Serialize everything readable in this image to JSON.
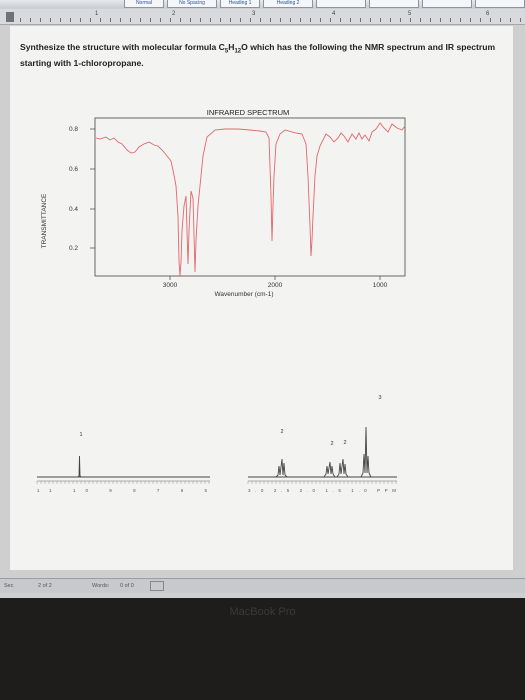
{
  "toolbar": {
    "styles": [
      "Normal",
      "No Spacing",
      "Heading 1",
      "Heading 2"
    ]
  },
  "ruler": {
    "numbers": [
      "1",
      "2",
      "3",
      "4",
      "5",
      "6"
    ]
  },
  "question": {
    "part1": "Synthesize the structure with molecular formula C",
    "sub1": "5",
    "part2": "H",
    "sub2": "12",
    "part3": "O which has the following the NMR spectrum and IR spectrum starting with 1-chloropropane."
  },
  "ir_spectrum": {
    "title": "INFRARED SPECTRUM",
    "ylabel": "TRANSMITTANCE",
    "xlabel": "Wavenumber (cm-1)",
    "yticks": [
      "0.8",
      "0.6",
      "0.4",
      "0.2"
    ],
    "xticks": [
      "3000",
      "2000",
      "1000"
    ],
    "line_color": "#e3676b"
  },
  "nmr_spectrum": {
    "integrations": [
      "1",
      "2",
      "2",
      "2",
      "3"
    ],
    "left_axis": "11 10 9 8 7 6 5",
    "right_axis": "3.0 2.5 2.0 1.5 1.0 PPM",
    "peak_color": "#444444"
  },
  "status_bar": {
    "section": "Sec",
    "pages": "2 of 2",
    "words_label": "Words:",
    "words": "0 of 0"
  },
  "laptop": {
    "label": "MacBook Pro"
  }
}
